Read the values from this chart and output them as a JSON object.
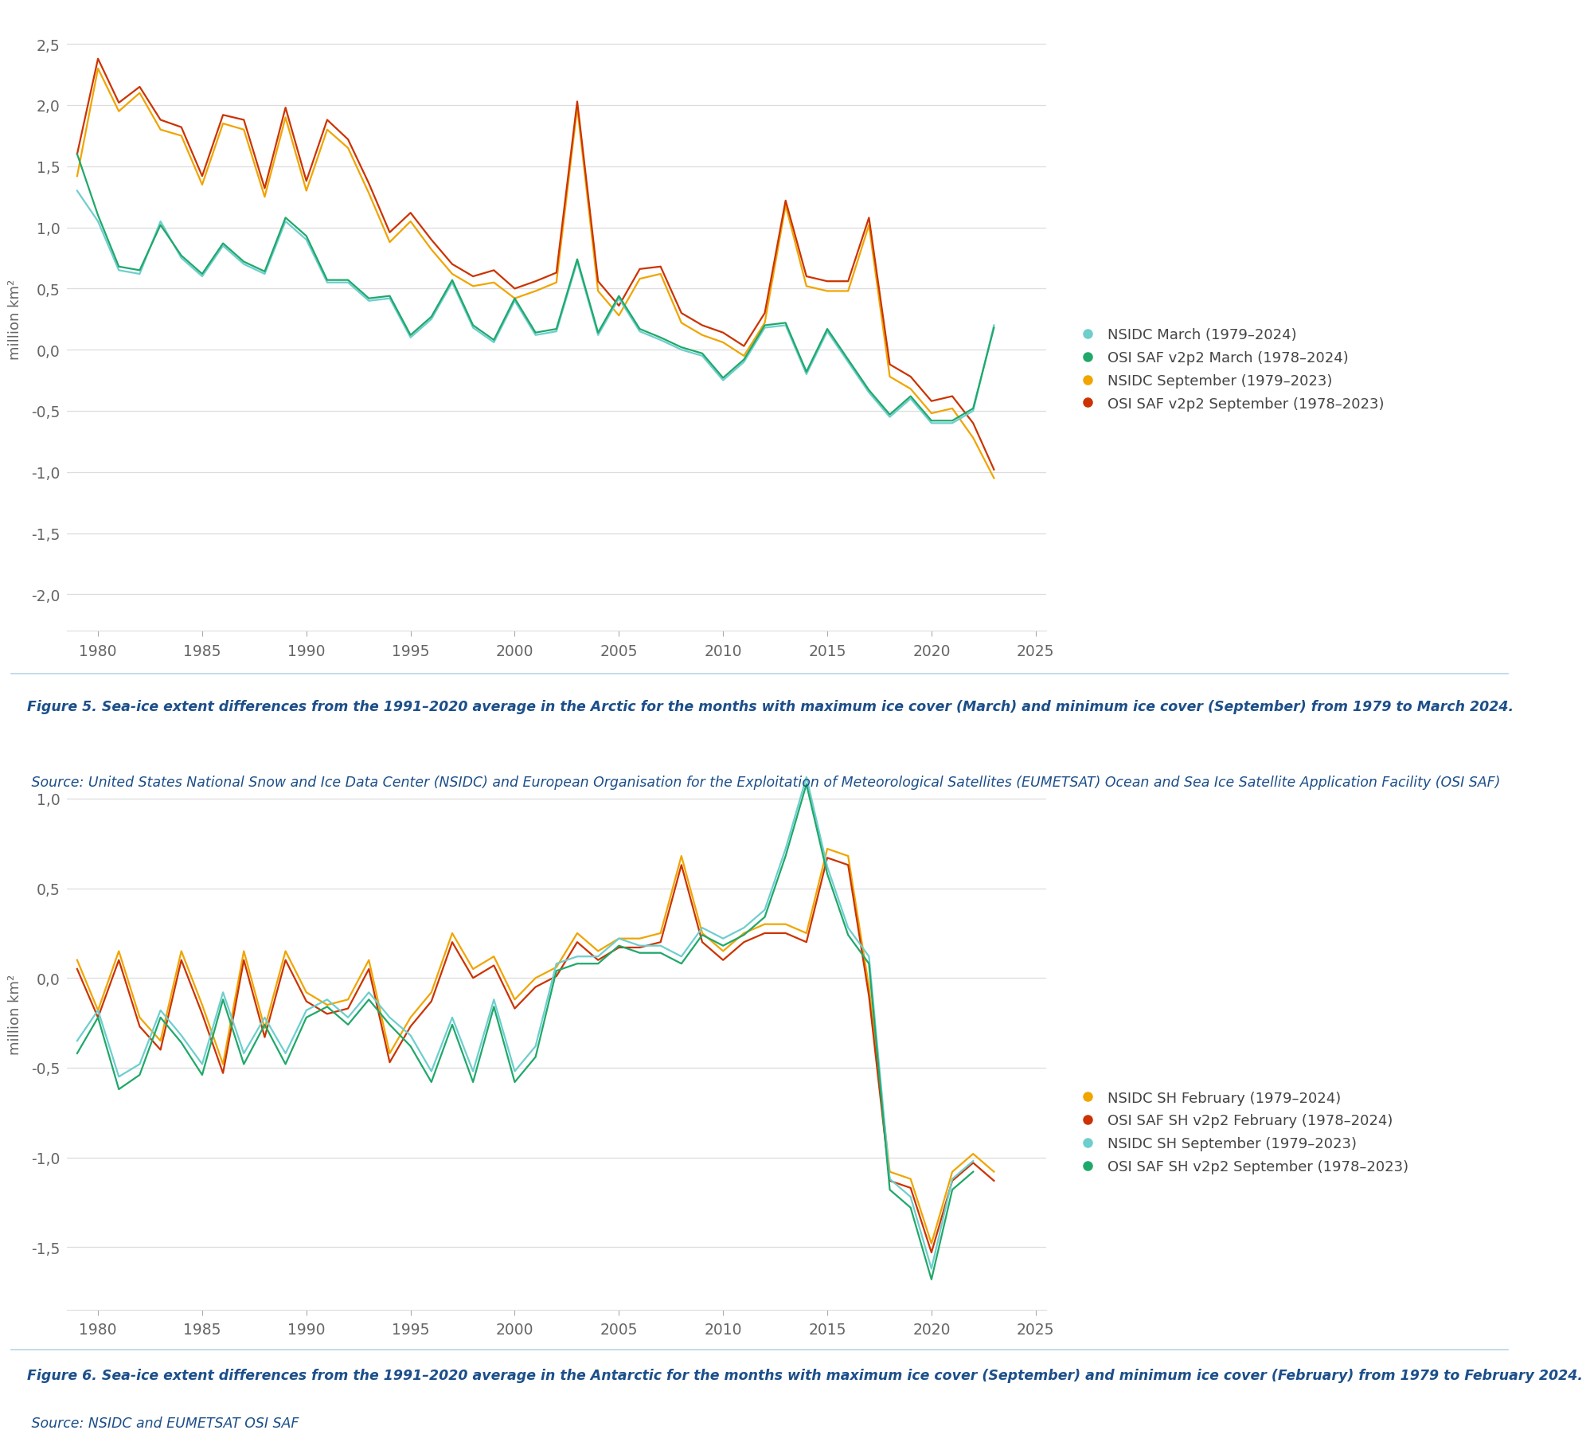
{
  "fig5_caption_bold": "Figure 5. Sea-ice extent differences from the 1991–2020 average in the Arctic for the months with maximum ice cover (March) and minimum ice cover (September) from 1979 to March 2024.",
  "fig5_caption_normal": " Source: United States National Snow and Ice Data Center (NSIDC) and European Organisation for the Exploitation of Meteorological Satellites (EUMETSAT) Ocean and Sea Ice Satellite Application Facility (OSI SAF)",
  "fig6_caption_bold": "Figure 6. Sea-ice extent differences from the 1991–2020 average in the Antarctic for the months with maximum ice cover (September) and minimum ice cover (February) from 1979 to February 2024.",
  "fig6_caption_normal": " Source: NSIDC and EUMETSAT OSI SAF",
  "ylabel": "million km²",
  "fig5_ylim": [
    -2.3,
    2.8
  ],
  "fig5_yticks": [
    -2.0,
    -1.5,
    -1.0,
    -0.5,
    0.0,
    0.5,
    1.0,
    1.5,
    2.0,
    2.5
  ],
  "fig6_ylim": [
    -1.85,
    1.45
  ],
  "fig6_yticks": [
    -1.5,
    -1.0,
    -0.5,
    0.0,
    0.5,
    1.0
  ],
  "xlim": [
    1978.5,
    2025.5
  ],
  "xticks": [
    1980,
    1985,
    1990,
    1995,
    2000,
    2005,
    2010,
    2015,
    2020,
    2025
  ],
  "color_nsidc_march": "#6ECECE",
  "color_osisaf_march": "#1FA86A",
  "color_nsidc_sep": "#F0A500",
  "color_osisaf_sep": "#CC3300",
  "color_nsidc_feb": "#F0A500",
  "color_osisaf_feb": "#CC3300",
  "color_nsidc_sh_sep": "#6ECECE",
  "color_osisaf_sh_sep": "#1FA86A",
  "fig5_legend": [
    "NSIDC March (1979–2024)",
    "OSI SAF v2p2 March (1978–2024)",
    "NSIDC September (1979–2023)",
    "OSI SAF v2p2 September (1978–2023)"
  ],
  "fig6_legend": [
    "NSIDC SH February (1979–2024)",
    "OSI SAF SH v2p2 February (1978–2024)",
    "NSIDC SH September (1979–2023)",
    "OSI SAF SH v2p2 September (1978–2023)"
  ],
  "background_color": "#FFFFFF",
  "grid_color": "#DDDDDD",
  "nsidc_march": [
    1.3,
    1.05,
    0.65,
    0.62,
    1.05,
    0.75,
    0.6,
    0.85,
    0.7,
    0.62,
    1.05,
    0.9,
    0.55,
    0.55,
    0.4,
    0.42,
    0.1,
    0.25,
    0.55,
    0.18,
    0.06,
    0.4,
    0.12,
    0.15,
    0.72,
    0.12,
    0.42,
    0.15,
    0.08,
    0.0,
    -0.05,
    -0.25,
    -0.1,
    0.18,
    0.2,
    -0.2,
    0.15,
    -0.1,
    -0.35,
    -0.55,
    -0.4,
    -0.6,
    -0.6,
    -0.5,
    0.2
  ],
  "osisaf_march": [
    1.6,
    1.1,
    0.68,
    0.65,
    1.02,
    0.77,
    0.62,
    0.87,
    0.72,
    0.64,
    1.08,
    0.93,
    0.57,
    0.57,
    0.42,
    0.44,
    0.12,
    0.27,
    0.57,
    0.2,
    0.08,
    0.42,
    0.14,
    0.17,
    0.74,
    0.14,
    0.44,
    0.17,
    0.1,
    0.02,
    -0.03,
    -0.23,
    -0.08,
    0.2,
    0.22,
    -0.18,
    0.17,
    -0.08,
    -0.33,
    -0.53,
    -0.38,
    -0.58,
    -0.58,
    -0.48,
    0.18
  ],
  "nsidc_sep": [
    1.42,
    2.3,
    1.95,
    2.1,
    1.8,
    1.75,
    1.35,
    1.85,
    1.8,
    1.25,
    1.9,
    1.3,
    1.8,
    1.65,
    1.28,
    0.88,
    1.05,
    0.82,
    0.62,
    0.52,
    0.55,
    0.42,
    0.48,
    0.55,
    1.98,
    0.48,
    0.28,
    0.58,
    0.62,
    0.22,
    0.12,
    0.06,
    -0.05,
    0.22,
    1.18,
    0.52,
    0.48,
    0.48,
    1.02,
    -0.22,
    -0.32,
    -0.52,
    -0.48,
    -0.72,
    -1.05
  ],
  "osisaf_sep": [
    1.6,
    2.38,
    2.02,
    2.15,
    1.88,
    1.82,
    1.42,
    1.92,
    1.88,
    1.32,
    1.98,
    1.38,
    1.88,
    1.72,
    1.36,
    0.96,
    1.12,
    0.9,
    0.7,
    0.6,
    0.65,
    0.5,
    0.56,
    0.63,
    2.03,
    0.56,
    0.36,
    0.66,
    0.68,
    0.3,
    0.2,
    0.14,
    0.03,
    0.3,
    1.22,
    0.6,
    0.56,
    0.56,
    1.08,
    -0.12,
    -0.22,
    -0.42,
    -0.38,
    -0.6,
    -0.98
  ],
  "nsidc_feb": [
    0.1,
    -0.18,
    0.15,
    -0.22,
    -0.35,
    0.15,
    -0.15,
    -0.48,
    0.15,
    -0.28,
    0.15,
    -0.08,
    -0.15,
    -0.12,
    0.1,
    -0.42,
    -0.22,
    -0.08,
    0.25,
    0.05,
    0.12,
    -0.12,
    0.0,
    0.06,
    0.25,
    0.15,
    0.22,
    0.22,
    0.25,
    0.68,
    0.25,
    0.15,
    0.25,
    0.3,
    0.3,
    0.25,
    0.72,
    0.68,
    -0.05,
    -1.08,
    -1.12,
    -1.48,
    -1.08,
    -0.98,
    -1.08
  ],
  "osisaf_feb": [
    0.05,
    -0.22,
    0.1,
    -0.27,
    -0.4,
    0.1,
    -0.2,
    -0.53,
    0.1,
    -0.33,
    0.1,
    -0.13,
    -0.2,
    -0.17,
    0.05,
    -0.47,
    -0.27,
    -0.13,
    0.2,
    0.0,
    0.07,
    -0.17,
    -0.05,
    0.01,
    0.2,
    0.1,
    0.17,
    0.17,
    0.2,
    0.63,
    0.2,
    0.1,
    0.2,
    0.25,
    0.25,
    0.2,
    0.67,
    0.63,
    -0.1,
    -1.13,
    -1.17,
    -1.53,
    -1.13,
    -1.03,
    -1.13
  ],
  "nsidc_sh_sep": [
    -0.35,
    -0.18,
    -0.55,
    -0.48,
    -0.18,
    -0.32,
    -0.48,
    -0.08,
    -0.42,
    -0.22,
    -0.42,
    -0.18,
    -0.12,
    -0.22,
    -0.08,
    -0.22,
    -0.32,
    -0.52,
    -0.22,
    -0.52,
    -0.12,
    -0.52,
    -0.38,
    0.08,
    0.12,
    0.12,
    0.22,
    0.18,
    0.18,
    0.12,
    0.28,
    0.22,
    0.28,
    0.38,
    0.72,
    1.12,
    0.62,
    0.28,
    0.12,
    -1.12,
    -1.22,
    -1.62,
    -1.12,
    -1.02,
    null
  ],
  "osisaf_sh_sep": [
    -0.42,
    -0.22,
    -0.62,
    -0.54,
    -0.22,
    -0.36,
    -0.54,
    -0.12,
    -0.48,
    -0.26,
    -0.48,
    -0.22,
    -0.16,
    -0.26,
    -0.12,
    -0.26,
    -0.38,
    -0.58,
    -0.26,
    -0.58,
    -0.16,
    -0.58,
    -0.44,
    0.04,
    0.08,
    0.08,
    0.18,
    0.14,
    0.14,
    0.08,
    0.24,
    0.18,
    0.24,
    0.34,
    0.68,
    1.08,
    0.58,
    0.24,
    0.08,
    -1.18,
    -1.28,
    -1.68,
    -1.18,
    -1.08,
    null
  ]
}
